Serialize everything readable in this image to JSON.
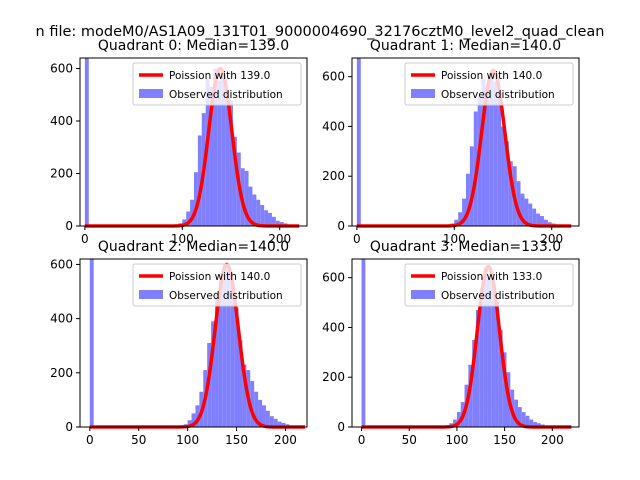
{
  "figure": {
    "suptitle": "n file: modeM0/AS1A09_131T01_9000004690_32176cztM0_level2_quad_clean"
  },
  "colors": {
    "poisson": "#ff0000",
    "observed": "#7f7fff",
    "spine": "#000000",
    "legend_border": "#cccccc"
  },
  "chart_data": [
    {
      "type": "bar",
      "title": "Quadrant 0: Median=139.0",
      "xlim": [
        -5,
        228
      ],
      "ylim": [
        0,
        640
      ],
      "xticks": [
        0,
        100,
        200
      ],
      "yticks": [
        0,
        200,
        400,
        600
      ],
      "poisson_label": "Poission with 139.0",
      "observed_label": "Observed distribution",
      "poisson_mean": 139,
      "poisson_peak": 600,
      "bins": [
        [
          0,
          4,
          640
        ],
        [
          96,
          100,
          10
        ],
        [
          100,
          104,
          25
        ],
        [
          104,
          108,
          55
        ],
        [
          108,
          112,
          100
        ],
        [
          112,
          116,
          205
        ],
        [
          116,
          120,
          345
        ],
        [
          120,
          124,
          430
        ],
        [
          124,
          128,
          560
        ],
        [
          128,
          132,
          530
        ],
        [
          132,
          136,
          600
        ],
        [
          136,
          140,
          555
        ],
        [
          140,
          144,
          580
        ],
        [
          144,
          148,
          510
        ],
        [
          148,
          152,
          480
        ],
        [
          152,
          156,
          340
        ],
        [
          156,
          160,
          280
        ],
        [
          160,
          164,
          220
        ],
        [
          164,
          168,
          210
        ],
        [
          168,
          172,
          150
        ],
        [
          172,
          176,
          120
        ],
        [
          176,
          180,
          100
        ],
        [
          180,
          184,
          80
        ],
        [
          184,
          188,
          60
        ],
        [
          188,
          192,
          50
        ],
        [
          192,
          196,
          35
        ],
        [
          196,
          200,
          20
        ],
        [
          200,
          204,
          15
        ],
        [
          204,
          208,
          10
        ],
        [
          208,
          212,
          5
        ]
      ]
    },
    {
      "type": "bar",
      "title": "Quadrant 1: Median=140.0",
      "xlim": [
        -5,
        228
      ],
      "ylim": [
        0,
        675
      ],
      "xticks": [
        0,
        100,
        200
      ],
      "yticks": [
        0,
        200,
        400,
        600
      ],
      "poisson_label": "Poission with 140.0",
      "observed_label": "Observed distribution",
      "poisson_mean": 140,
      "poisson_peak": 625,
      "bins": [
        [
          0,
          4,
          675
        ],
        [
          96,
          100,
          10
        ],
        [
          100,
          104,
          25
        ],
        [
          104,
          108,
          55
        ],
        [
          108,
          112,
          110
        ],
        [
          112,
          116,
          210
        ],
        [
          116,
          120,
          320
        ],
        [
          120,
          124,
          460
        ],
        [
          124,
          128,
          520
        ],
        [
          128,
          132,
          590
        ],
        [
          132,
          136,
          565
        ],
        [
          136,
          140,
          600
        ],
        [
          140,
          144,
          580
        ],
        [
          144,
          148,
          550
        ],
        [
          148,
          152,
          400
        ],
        [
          152,
          156,
          340
        ],
        [
          156,
          160,
          260
        ],
        [
          160,
          164,
          240
        ],
        [
          164,
          168,
          180
        ],
        [
          168,
          172,
          130
        ],
        [
          172,
          176,
          110
        ],
        [
          176,
          180,
          90
        ],
        [
          180,
          184,
          70
        ],
        [
          184,
          188,
          50
        ],
        [
          188,
          192,
          40
        ],
        [
          192,
          196,
          25
        ],
        [
          196,
          200,
          15
        ],
        [
          200,
          204,
          10
        ],
        [
          204,
          208,
          5
        ]
      ]
    },
    {
      "type": "bar",
      "title": "Quadrant 2: Median=140.0",
      "xlim": [
        -10,
        222
      ],
      "ylim": [
        0,
        620
      ],
      "xticks": [
        0,
        50,
        100,
        150,
        200
      ],
      "yticks": [
        0,
        200,
        400,
        600
      ],
      "poisson_label": "Poission with 140.0",
      "observed_label": "Observed distribution",
      "poisson_mean": 140,
      "poisson_peak": 600,
      "bins": [
        [
          0,
          4,
          620
        ],
        [
          96,
          100,
          10
        ],
        [
          100,
          104,
          25
        ],
        [
          104,
          108,
          50
        ],
        [
          108,
          112,
          80
        ],
        [
          112,
          116,
          130
        ],
        [
          116,
          120,
          210
        ],
        [
          120,
          124,
          310
        ],
        [
          124,
          128,
          390
        ],
        [
          128,
          132,
          500
        ],
        [
          132,
          136,
          540
        ],
        [
          136,
          140,
          600
        ],
        [
          140,
          144,
          590
        ],
        [
          144,
          148,
          520
        ],
        [
          148,
          152,
          440
        ],
        [
          152,
          156,
          320
        ],
        [
          156,
          160,
          230
        ],
        [
          160,
          164,
          210
        ],
        [
          164,
          168,
          170
        ],
        [
          168,
          172,
          130
        ],
        [
          172,
          176,
          100
        ],
        [
          176,
          180,
          80
        ],
        [
          180,
          184,
          60
        ],
        [
          184,
          188,
          40
        ],
        [
          188,
          192,
          30
        ],
        [
          192,
          196,
          20
        ],
        [
          196,
          200,
          15
        ],
        [
          200,
          204,
          10
        ],
        [
          204,
          208,
          5
        ]
      ]
    },
    {
      "type": "bar",
      "title": "Quadrant 3: Median=133.0",
      "xlim": [
        -10,
        228
      ],
      "ylim": [
        0,
        675
      ],
      "xticks": [
        0,
        50,
        100,
        150,
        200
      ],
      "yticks": [
        0,
        200,
        400,
        600
      ],
      "poisson_label": "Poission with 133.0",
      "observed_label": "Observed distribution",
      "poisson_mean": 133,
      "poisson_peak": 645,
      "bins": [
        [
          0,
          4,
          675
        ],
        [
          88,
          92,
          5
        ],
        [
          92,
          96,
          15
        ],
        [
          96,
          100,
          30
        ],
        [
          100,
          104,
          60
        ],
        [
          104,
          108,
          100
        ],
        [
          108,
          112,
          170
        ],
        [
          112,
          116,
          250
        ],
        [
          116,
          120,
          350
        ],
        [
          120,
          124,
          470
        ],
        [
          124,
          128,
          560
        ],
        [
          128,
          132,
          640
        ],
        [
          132,
          136,
          600
        ],
        [
          136,
          140,
          580
        ],
        [
          140,
          144,
          500
        ],
        [
          144,
          148,
          390
        ],
        [
          148,
          152,
          300
        ],
        [
          152,
          156,
          220
        ],
        [
          156,
          160,
          150
        ],
        [
          160,
          164,
          110
        ],
        [
          164,
          168,
          80
        ],
        [
          168,
          172,
          60
        ],
        [
          172,
          176,
          45
        ],
        [
          176,
          180,
          30
        ],
        [
          180,
          184,
          20
        ],
        [
          184,
          188,
          15
        ],
        [
          188,
          192,
          10
        ],
        [
          192,
          196,
          5
        ]
      ]
    }
  ]
}
